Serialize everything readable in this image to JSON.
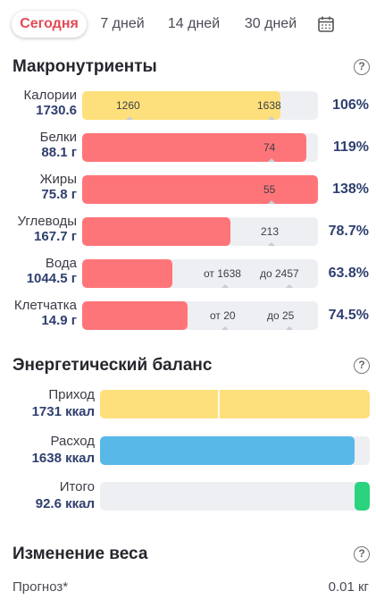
{
  "tabs": [
    {
      "label": "Сегодня",
      "active": true
    },
    {
      "label": "7 дней",
      "active": false
    },
    {
      "label": "14 дней",
      "active": false
    },
    {
      "label": "30 дней",
      "active": false
    }
  ],
  "calendar_icon": "calendar-icon",
  "help_icon": "question-circle-icon",
  "macros": {
    "title": "Макронутриенты",
    "rows": [
      {
        "label": "Калории",
        "value": "1730.6",
        "percent": "106%",
        "color": "#fde07b",
        "fill_fraction": 0.84,
        "markers": [
          "1260",
          "1638"
        ]
      },
      {
        "label": "Белки",
        "value": "88.1 г",
        "percent": "119%",
        "color": "#fe7579",
        "fill_fraction": 0.95,
        "markers": [
          "74"
        ]
      },
      {
        "label": "Жиры",
        "value": "75.8 г",
        "percent": "138%",
        "color": "#fe7579",
        "fill_fraction": 1.0,
        "markers": [
          "55"
        ]
      },
      {
        "label": "Углеводы",
        "value": "167.7 г",
        "percent": "78.7%",
        "color": "#fe7579",
        "fill_fraction": 0.63,
        "markers": [
          "213"
        ]
      },
      {
        "label": "Вода",
        "value": "1044.5 г",
        "percent": "63.8%",
        "color": "#fe7579",
        "fill_fraction": 0.38,
        "markers": [
          "от 1638",
          "до 2457"
        ]
      },
      {
        "label": "Клетчатка",
        "value": "14.9 г",
        "percent": "74.5%",
        "color": "#fe7579",
        "fill_fraction": 0.45,
        "markers": [
          "от 20",
          "до 25"
        ]
      }
    ]
  },
  "energy": {
    "title": "Энергетический баланс",
    "rows": [
      {
        "label": "Приход",
        "value": "1731 ккал",
        "color": "#fde07b",
        "fill_fraction": 1.0
      },
      {
        "label": "Расход",
        "value": "1638 ккал",
        "color": "#58b8e8",
        "fill_fraction": 0.945
      },
      {
        "label": "Итого",
        "value": "92.6 ккал",
        "color": "#2bd37f",
        "fill_fraction": 0.055
      }
    ]
  },
  "weight": {
    "title": "Изменение веса",
    "forecast_label": "Прогноз*",
    "forecast_value": "0.01 кг"
  }
}
